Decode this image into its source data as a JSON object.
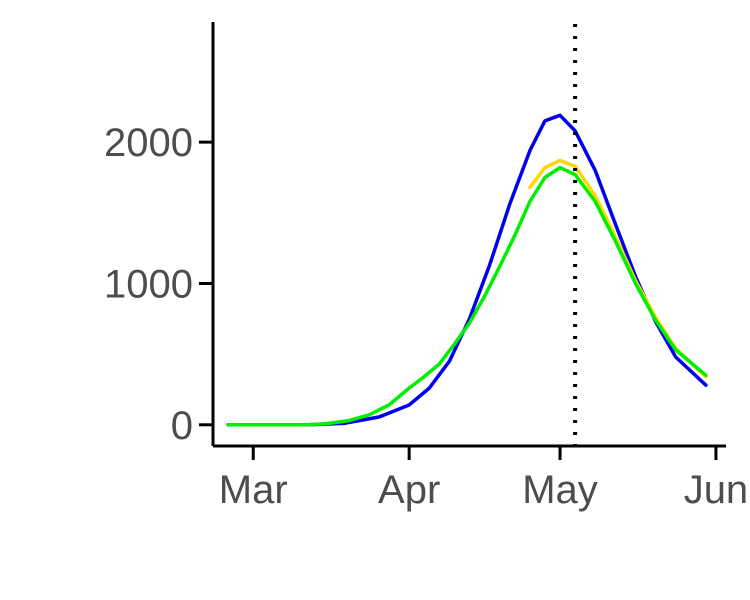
{
  "chart_data": {
    "type": "line",
    "title": "",
    "xlabel": "",
    "ylabel": "",
    "x_axis": {
      "kind": "date",
      "range": [
        "2020-02-22",
        "2020-06-03"
      ],
      "ticks": [
        {
          "date": "2020-03-01",
          "label": "Mar"
        },
        {
          "date": "2020-04-01",
          "label": "Apr"
        },
        {
          "date": "2020-05-01",
          "label": "May"
        },
        {
          "date": "2020-06-01",
          "label": "Jun"
        }
      ]
    },
    "y_axis": {
      "range": [
        -150,
        2850
      ],
      "ticks": [
        {
          "value": 0,
          "label": "0"
        },
        {
          "value": 1000,
          "label": "1000"
        },
        {
          "value": 2000,
          "label": "2000"
        }
      ]
    },
    "grid": false,
    "legend": "none",
    "vline": {
      "date": "2020-05-04",
      "style": "dotted",
      "color": "#000000"
    },
    "series": [
      {
        "color": "#0000ee",
        "points": [
          [
            "2020-02-25",
            0
          ],
          [
            "2020-03-05",
            0
          ],
          [
            "2020-03-12",
            0
          ],
          [
            "2020-03-19",
            10
          ],
          [
            "2020-03-26",
            55
          ],
          [
            "2020-04-01",
            140
          ],
          [
            "2020-04-05",
            260
          ],
          [
            "2020-04-09",
            450
          ],
          [
            "2020-04-13",
            750
          ],
          [
            "2020-04-17",
            1130
          ],
          [
            "2020-04-21",
            1560
          ],
          [
            "2020-04-25",
            1940
          ],
          [
            "2020-04-28",
            2150
          ],
          [
            "2020-05-01",
            2190
          ],
          [
            "2020-05-04",
            2080
          ],
          [
            "2020-05-08",
            1800
          ],
          [
            "2020-05-12",
            1420
          ],
          [
            "2020-05-16",
            1050
          ],
          [
            "2020-05-20",
            730
          ],
          [
            "2020-05-24",
            480
          ],
          [
            "2020-05-30",
            280
          ]
        ]
      },
      {
        "color": "#ffd700",
        "points": [
          [
            "2020-04-25",
            1680
          ],
          [
            "2020-04-28",
            1820
          ],
          [
            "2020-05-01",
            1870
          ],
          [
            "2020-05-04",
            1830
          ],
          [
            "2020-05-08",
            1620
          ],
          [
            "2020-05-12",
            1330
          ],
          [
            "2020-05-16",
            1020
          ],
          [
            "2020-05-20",
            760
          ],
          [
            "2020-05-24",
            540
          ],
          [
            "2020-05-30",
            340
          ]
        ]
      },
      {
        "color": "#00ee00",
        "points": [
          [
            "2020-02-25",
            0
          ],
          [
            "2020-03-05",
            0
          ],
          [
            "2020-03-12",
            0
          ],
          [
            "2020-03-16",
            10
          ],
          [
            "2020-03-20",
            30
          ],
          [
            "2020-03-24",
            70
          ],
          [
            "2020-03-28",
            140
          ],
          [
            "2020-04-01",
            260
          ],
          [
            "2020-04-04",
            340
          ],
          [
            "2020-04-07",
            430
          ],
          [
            "2020-04-10",
            570
          ],
          [
            "2020-04-13",
            720
          ],
          [
            "2020-04-16",
            910
          ],
          [
            "2020-04-19",
            1120
          ],
          [
            "2020-04-22",
            1340
          ],
          [
            "2020-04-25",
            1580
          ],
          [
            "2020-04-28",
            1750
          ],
          [
            "2020-05-01",
            1820
          ],
          [
            "2020-05-04",
            1770
          ],
          [
            "2020-05-08",
            1580
          ],
          [
            "2020-05-12",
            1300
          ],
          [
            "2020-05-16",
            1000
          ],
          [
            "2020-05-20",
            740
          ],
          [
            "2020-05-24",
            530
          ],
          [
            "2020-05-30",
            350
          ]
        ]
      }
    ]
  }
}
